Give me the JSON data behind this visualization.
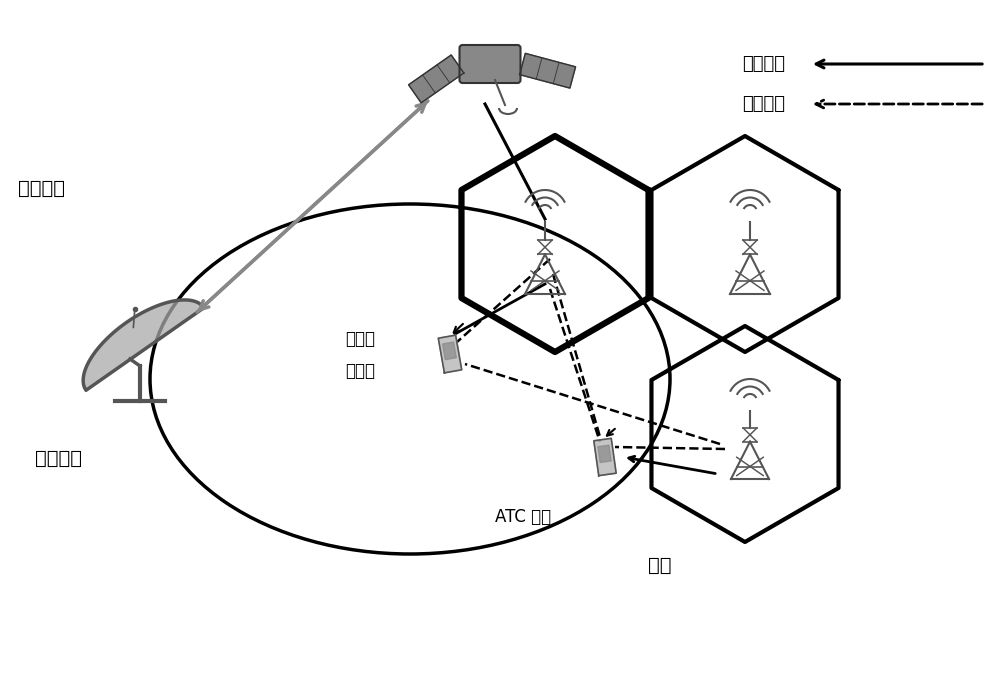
{
  "bg_color": "#ffffff",
  "text_feeder_link": "馈线链路",
  "text_satellite_beam": "卫星波束",
  "text_mobile_user_line1": "移动卫",
  "text_mobile_user_line2": "星用户",
  "text_atc_user": "ATC 用户",
  "text_base_station": "基站",
  "text_useful_signal": "有用信号",
  "text_interference": "干扰信号",
  "figsize": [
    10.0,
    6.99
  ],
  "dpi": 100
}
